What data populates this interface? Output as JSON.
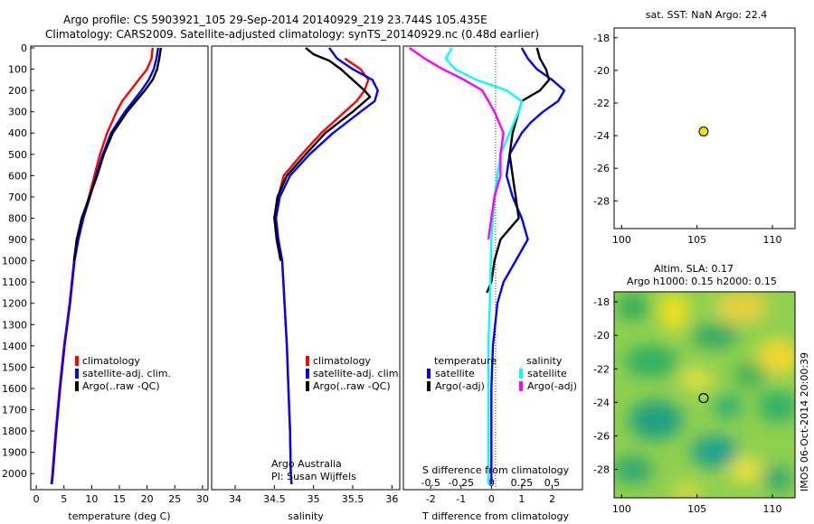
{
  "header": {
    "line1": "Argo profile: CS 5903921_105 29-Sep-2014 20140929_219 23.744S 105.435E",
    "line2": "Climatology: CARS2009. Satellite-adjusted climatology: synTS_20140929.nc (0.48d earlier)"
  },
  "colors": {
    "climatology": "#ff0000",
    "satellite": "#0000ff",
    "argo": "#000000",
    "sat_salinity": "#00ffff",
    "argo_salinity": "#ff00ff"
  },
  "chart_data": [
    {
      "type": "line",
      "name": "temperature-panel",
      "xlabel": "temperature (deg C)",
      "xlim": [
        -1,
        31
      ],
      "ylim": [
        2060,
        0
      ],
      "xticks": [
        "0",
        "5",
        "10",
        "15",
        "20",
        "25",
        "30"
      ],
      "yticks": [
        "0",
        "100",
        "200",
        "300",
        "400",
        "500",
        "600",
        "700",
        "800",
        "900",
        "1000",
        "1100",
        "1200",
        "1300",
        "1400",
        "1500",
        "1600",
        "1700",
        "1800",
        "1900",
        "2000"
      ],
      "legend": [
        "climatology",
        "satellite-adj. clim.",
        "Argo(..raw -QC)"
      ],
      "series": [
        {
          "name": "climatology",
          "color": "#ff0000",
          "points": [
            [
              21.0,
              0
            ],
            [
              20.8,
              50
            ],
            [
              20.0,
              100
            ],
            [
              18.5,
              150
            ],
            [
              17.0,
              200
            ],
            [
              15.5,
              250
            ],
            [
              14.5,
              300
            ],
            [
              12.8,
              400
            ],
            [
              11.5,
              500
            ],
            [
              10.5,
              600
            ],
            [
              9.5,
              700
            ],
            [
              8.4,
              800
            ],
            [
              7.5,
              900
            ],
            [
              6.8,
              1000
            ],
            [
              6.0,
              1200
            ],
            [
              5.0,
              1400
            ],
            [
              4.2,
              1600
            ],
            [
              3.5,
              1800
            ],
            [
              2.9,
              2000
            ],
            [
              2.7,
              2050
            ]
          ]
        },
        {
          "name": "satellite-adj. clim.",
          "color": "#0000ff",
          "points": [
            [
              22.0,
              0
            ],
            [
              21.7,
              50
            ],
            [
              21.2,
              100
            ],
            [
              20.3,
              150
            ],
            [
              19.0,
              200
            ],
            [
              17.5,
              250
            ],
            [
              16.0,
              300
            ],
            [
              13.5,
              400
            ],
            [
              12.0,
              500
            ],
            [
              10.8,
              600
            ],
            [
              9.7,
              700
            ],
            [
              8.5,
              800
            ],
            [
              7.6,
              900
            ],
            [
              6.9,
              1000
            ],
            [
              6.1,
              1200
            ],
            [
              5.1,
              1400
            ],
            [
              4.3,
              1600
            ],
            [
              3.6,
              1800
            ],
            [
              3.0,
              2000
            ],
            [
              2.8,
              2050
            ]
          ]
        },
        {
          "name": "Argo(..raw -QC)",
          "color": "#000000",
          "points": [
            [
              22.5,
              0
            ],
            [
              22.2,
              50
            ],
            [
              21.8,
              100
            ],
            [
              21.0,
              150
            ],
            [
              19.6,
              200
            ],
            [
              18.0,
              250
            ],
            [
              16.4,
              300
            ],
            [
              13.8,
              400
            ],
            [
              12.2,
              500
            ],
            [
              11.0,
              600
            ],
            [
              9.6,
              700
            ],
            [
              8.2,
              800
            ],
            [
              7.3,
              900
            ],
            [
              6.8,
              1000
            ]
          ]
        }
      ]
    },
    {
      "type": "line",
      "name": "salinity-panel",
      "xlabel": "salinity",
      "xlim": [
        33.7,
        36.1
      ],
      "ylim": [
        2060,
        0
      ],
      "xticks": [
        "34",
        "34.5",
        "35",
        "35.5",
        "36"
      ],
      "legend": [
        "climatology",
        "satellite-adj. clim.",
        "Argo(..raw -QC)"
      ],
      "annotation": [
        "Argo Australia",
        "PI: Susan Wijffels"
      ],
      "series": [
        {
          "name": "climatology",
          "color": "#ff0000",
          "points": [
            [
              35.4,
              50
            ],
            [
              35.6,
              100
            ],
            [
              35.7,
              150
            ],
            [
              35.65,
              200
            ],
            [
              35.55,
              250
            ],
            [
              35.4,
              300
            ],
            [
              35.1,
              400
            ],
            [
              34.85,
              500
            ],
            [
              34.62,
              600
            ],
            [
              34.55,
              700
            ],
            [
              34.52,
              800
            ],
            [
              34.55,
              900
            ],
            [
              34.6,
              1000
            ],
            [
              34.63,
              1200
            ],
            [
              34.66,
              1400
            ],
            [
              34.68,
              1600
            ],
            [
              34.7,
              1800
            ],
            [
              34.71,
              2000
            ],
            [
              34.72,
              2050
            ]
          ]
        },
        {
          "name": "satellite-adj. clim.",
          "color": "#0000ff",
          "points": [
            [
              35.2,
              0
            ],
            [
              35.3,
              50
            ],
            [
              35.5,
              100
            ],
            [
              35.75,
              150
            ],
            [
              35.82,
              200
            ],
            [
              35.78,
              250
            ],
            [
              35.6,
              300
            ],
            [
              35.25,
              400
            ],
            [
              34.95,
              500
            ],
            [
              34.7,
              600
            ],
            [
              34.57,
              700
            ],
            [
              34.52,
              800
            ],
            [
              34.55,
              900
            ],
            [
              34.6,
              1000
            ],
            [
              34.63,
              1200
            ],
            [
              34.66,
              1400
            ],
            [
              34.68,
              1600
            ],
            [
              34.7,
              1800
            ],
            [
              34.71,
              2000
            ],
            [
              34.72,
              2050
            ]
          ]
        },
        {
          "name": "Argo(..raw -QC)",
          "color": "#000000",
          "points": [
            [
              34.9,
              0
            ],
            [
              35.0,
              30
            ],
            [
              35.2,
              60
            ],
            [
              35.35,
              100
            ],
            [
              35.5,
              150
            ],
            [
              35.65,
              200
            ],
            [
              35.72,
              230
            ],
            [
              35.5,
              300
            ],
            [
              35.15,
              400
            ],
            [
              34.9,
              500
            ],
            [
              34.66,
              600
            ],
            [
              34.54,
              700
            ],
            [
              34.5,
              800
            ],
            [
              34.53,
              900
            ],
            [
              34.58,
              1000
            ]
          ]
        }
      ]
    },
    {
      "type": "line",
      "name": "difference-panel",
      "xlabel": "T difference from climatology",
      "xlabel_top": "S difference from climatology",
      "xlim": [
        -2.9,
        3.0
      ],
      "ylim": [
        2060,
        0
      ],
      "xticks": [
        "-2",
        "-1",
        "0",
        "1",
        "2"
      ],
      "xticks_top": [
        "-0.5",
        "-0.25",
        "0",
        "0.25",
        "0.5"
      ],
      "legend_titles": [
        "temperature",
        "salinity"
      ],
      "legend": [
        {
          "label": "satellite",
          "color": "#0000ff"
        },
        {
          "label": "Argo(-adj)",
          "color": "#000000"
        },
        {
          "label": "satellite",
          "color": "#00ffff"
        },
        {
          "label": "Argo(-adj)",
          "color": "#ff00ff"
        }
      ],
      "series": [
        {
          "name": "satellite",
          "color": "#0000ff",
          "points": [
            [
              1.0,
              0
            ],
            [
              1.2,
              50
            ],
            [
              1.5,
              100
            ],
            [
              2.0,
              150
            ],
            [
              2.4,
              200
            ],
            [
              2.2,
              250
            ],
            [
              1.7,
              300
            ],
            [
              1.3,
              350
            ],
            [
              1.0,
              400
            ],
            [
              0.6,
              500
            ],
            [
              0.5,
              600
            ],
            [
              0.7,
              700
            ],
            [
              1.0,
              800
            ],
            [
              1.2,
              900
            ],
            [
              0.8,
              1000
            ],
            [
              0.4,
              1100
            ],
            [
              0.2,
              1200
            ],
            [
              0.05,
              1400
            ],
            [
              0.0,
              1600
            ],
            [
              0.0,
              1800
            ],
            [
              0.0,
              2050
            ]
          ]
        },
        {
          "name": "Argo(-adj)",
          "color": "#000000",
          "points": [
            [
              1.5,
              0
            ],
            [
              1.6,
              50
            ],
            [
              1.8,
              100
            ],
            [
              1.9,
              150
            ],
            [
              1.6,
              200
            ],
            [
              1.0,
              250
            ],
            [
              0.9,
              300
            ],
            [
              0.7,
              400
            ],
            [
              0.6,
              500
            ],
            [
              0.7,
              600
            ],
            [
              0.8,
              700
            ],
            [
              0.9,
              800
            ],
            [
              0.3,
              900
            ],
            [
              0.1,
              1000
            ],
            [
              0.0,
              1100
            ],
            [
              -0.15,
              1150
            ]
          ]
        },
        {
          "name": "satellite",
          "color": "#00ffff",
          "points": [
            [
              -1.3,
              0
            ],
            [
              -1.5,
              50
            ],
            [
              -1.2,
              100
            ],
            [
              -0.5,
              150
            ],
            [
              0.5,
              200
            ],
            [
              1.0,
              250
            ],
            [
              0.9,
              300
            ],
            [
              0.6,
              400
            ],
            [
              0.3,
              500
            ],
            [
              0.1,
              700
            ],
            [
              0.0,
              900
            ],
            [
              -0.05,
              1200
            ],
            [
              -0.1,
              1400
            ],
            [
              -0.1,
              1600
            ],
            [
              -0.1,
              2050
            ]
          ]
        },
        {
          "name": "Argo(-adj)",
          "color": "#ff00ff",
          "points": [
            [
              -2.7,
              0
            ],
            [
              -2.2,
              50
            ],
            [
              -1.6,
              100
            ],
            [
              -0.9,
              150
            ],
            [
              -0.3,
              200
            ],
            [
              0.1,
              300
            ],
            [
              0.4,
              400
            ],
            [
              0.3,
              500
            ],
            [
              0.3,
              600
            ],
            [
              0.1,
              700
            ],
            [
              0.0,
              800
            ],
            [
              -0.1,
              900
            ]
          ]
        }
      ]
    },
    {
      "type": "scatter",
      "name": "sst-map",
      "title": "sat. SST: NaN Argo: 22.4",
      "xlim": [
        99.5,
        111.5
      ],
      "ylim": [
        -29.7,
        -17.4
      ],
      "xticks": [
        "100",
        "105",
        "110"
      ],
      "yticks": [
        "-18",
        "-20",
        "-22",
        "-24",
        "-26",
        "-28"
      ],
      "points": [
        [
          105.435,
          -23.744
        ]
      ]
    },
    {
      "type": "heatmap",
      "name": "sla-map",
      "title": "Altim. SLA: 0.17",
      "subtitle": "Argo h1000: 0.15 h2000: 0.15",
      "xlim": [
        99.5,
        111.5
      ],
      "ylim": [
        -29.7,
        -17.4
      ],
      "xticks": [
        "100",
        "105",
        "110"
      ],
      "yticks": [
        "-18",
        "-20",
        "-22",
        "-24",
        "-26",
        "-28"
      ],
      "points": [
        [
          105.435,
          -23.744
        ]
      ]
    }
  ],
  "footer": {
    "stamp": "IMOS 06-Oct-2014 20:00:39"
  }
}
